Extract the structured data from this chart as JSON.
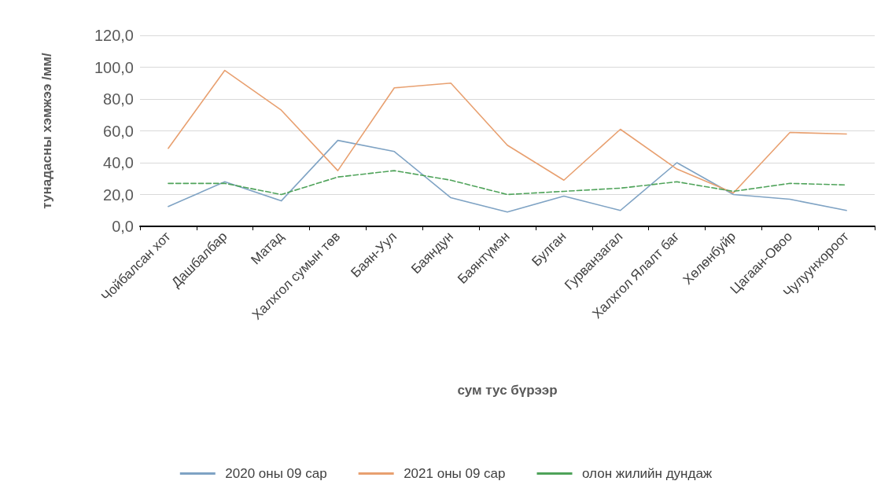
{
  "chart_data": {
    "type": "line",
    "ylabel": "тунадасны хэмжээ /мм/",
    "xlabel": "сум тус бүрээр",
    "categories": [
      "Чойбалсан хот",
      "Дашбалбар",
      "Матад",
      "Халхгол сумын төв",
      "Баян-Уул",
      "Баяндун",
      "Баянтүмэн",
      "Булган",
      "Гурванзагал",
      "Халхгол Ялалт баг",
      "Хөлөнбуйр",
      "Цагаан-Овоо",
      "Чулуунхороот"
    ],
    "series": [
      {
        "name": "2020 оны 09 сар",
        "color": "#7fa3c4",
        "line_style": "solid",
        "values": [
          12.5,
          28,
          16,
          54,
          47,
          18,
          9,
          19,
          10,
          40,
          20,
          17,
          10
        ]
      },
      {
        "name": "2021 оны 09 сар",
        "color": "#e8a070",
        "line_style": "solid",
        "values": [
          49,
          98,
          73,
          35,
          87,
          90,
          51,
          29,
          61,
          36,
          21,
          59,
          58
        ]
      },
      {
        "name": "олон жилийн дундаж",
        "color": "#4fa35a",
        "line_style": "dashed",
        "values": [
          27,
          27,
          20,
          31,
          35,
          29,
          20,
          22,
          24,
          28,
          22,
          27,
          26
        ]
      }
    ],
    "ylim": [
      0,
      120
    ],
    "yticks": [
      {
        "value": 0,
        "label": "0,0"
      },
      {
        "value": 20,
        "label": "20,0"
      },
      {
        "value": 40,
        "label": "40,0"
      },
      {
        "value": 60,
        "label": "60,0"
      },
      {
        "value": 80,
        "label": "80,0"
      },
      {
        "value": 100,
        "label": "100,0"
      },
      {
        "value": 120,
        "label": "120,0"
      }
    ],
    "grid": "y",
    "legend": "bottom",
    "marker": "none"
  }
}
